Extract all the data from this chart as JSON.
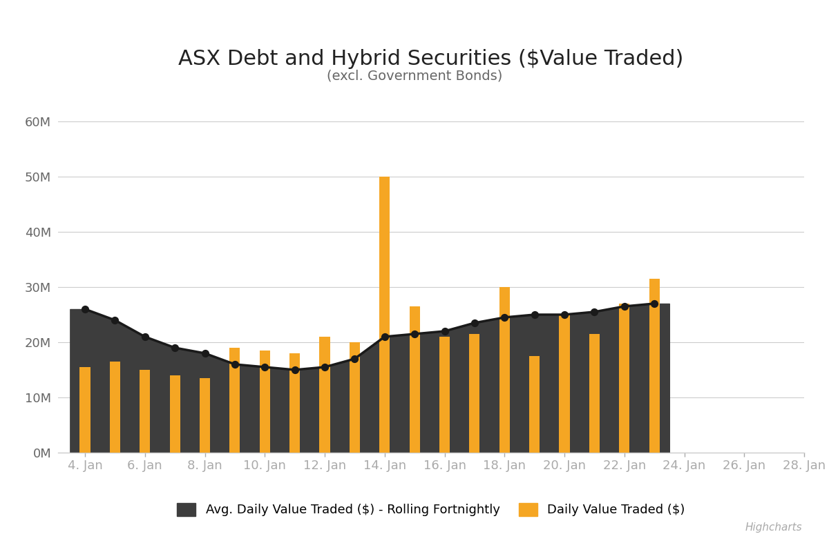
{
  "title": "ASX Debt and Hybrid Securities ($Value Traded)",
  "subtitle": "(excl. Government Bonds)",
  "highcharts_label": "Highcharts",
  "background_color": "#ffffff",
  "area_color": "#3d3d3d",
  "bar_color": "#f5a623",
  "line_color": "#1a1a1a",
  "x_labels": [
    "4. Jan",
    "6. Jan",
    "8. Jan",
    "10. Jan",
    "12. Jan",
    "14. Jan",
    "16. Jan",
    "18. Jan",
    "20. Jan",
    "22. Jan",
    "24. Jan",
    "26. Jan",
    "28. Jan"
  ],
  "x_tick_positions": [
    0,
    2,
    4,
    6,
    8,
    10,
    12,
    14,
    16,
    18,
    20,
    22,
    24
  ],
  "ylim": [
    0,
    65000000
  ],
  "yticks": [
    0,
    10000000,
    20000000,
    30000000,
    40000000,
    50000000,
    60000000
  ],
  "ytick_labels": [
    "0M",
    "10M",
    "20M",
    "30M",
    "40M",
    "50M",
    "60M"
  ],
  "n_categories": 20,
  "daily_values": [
    15500000,
    16500000,
    15000000,
    14000000,
    13500000,
    19000000,
    18500000,
    18000000,
    21000000,
    20000000,
    50000000,
    26500000,
    21000000,
    21500000,
    30000000,
    17500000,
    25000000,
    21500000,
    27000000,
    31500000
  ],
  "rolling_values": [
    26000000,
    24000000,
    21000000,
    19000000,
    18000000,
    16000000,
    15500000,
    15000000,
    15500000,
    17000000,
    21000000,
    21500000,
    22000000,
    23500000,
    24500000,
    25000000,
    25000000,
    25500000,
    26500000,
    27000000
  ],
  "legend_area_label": "Avg. Daily Value Traded ($) - Rolling Fortnightly",
  "legend_bar_label": "Daily Value Traded ($)",
  "title_fontsize": 22,
  "subtitle_fontsize": 14,
  "axis_fontsize": 13,
  "legend_fontsize": 13,
  "bar_width": 0.35
}
